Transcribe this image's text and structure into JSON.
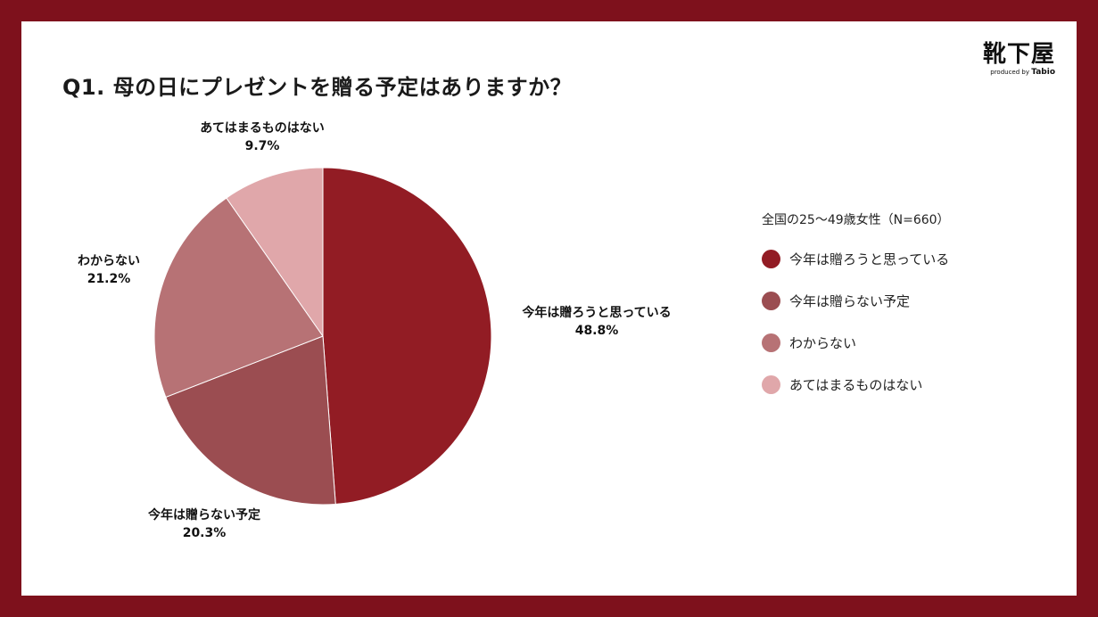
{
  "title": "Q1. 母の日にプレゼントを贈る予定はありますか？",
  "logo": {
    "main": "靴下屋",
    "sub_prefix": "produced by",
    "sub_brand": "Tabio"
  },
  "legend_title": "全国の25〜49歳女性（N=660）",
  "chart_data": {
    "type": "pie",
    "title": "Q1. 母の日にプレゼントを贈る予定はありますか？",
    "slices": [
      {
        "label": "今年は贈ろうと思っている",
        "value": 48.8,
        "display": "48.8%",
        "color": "#921c24"
      },
      {
        "label": "今年は贈らない予定",
        "value": 20.3,
        "display": "20.3%",
        "color": "#9b4d51"
      },
      {
        "label": "わからない",
        "value": 21.2,
        "display": "21.2%",
        "color": "#b77275"
      },
      {
        "label": "あてはまるものはない",
        "value": 9.7,
        "display": "9.7%",
        "color": "#e0a7aa"
      }
    ],
    "legend_position": "right"
  }
}
